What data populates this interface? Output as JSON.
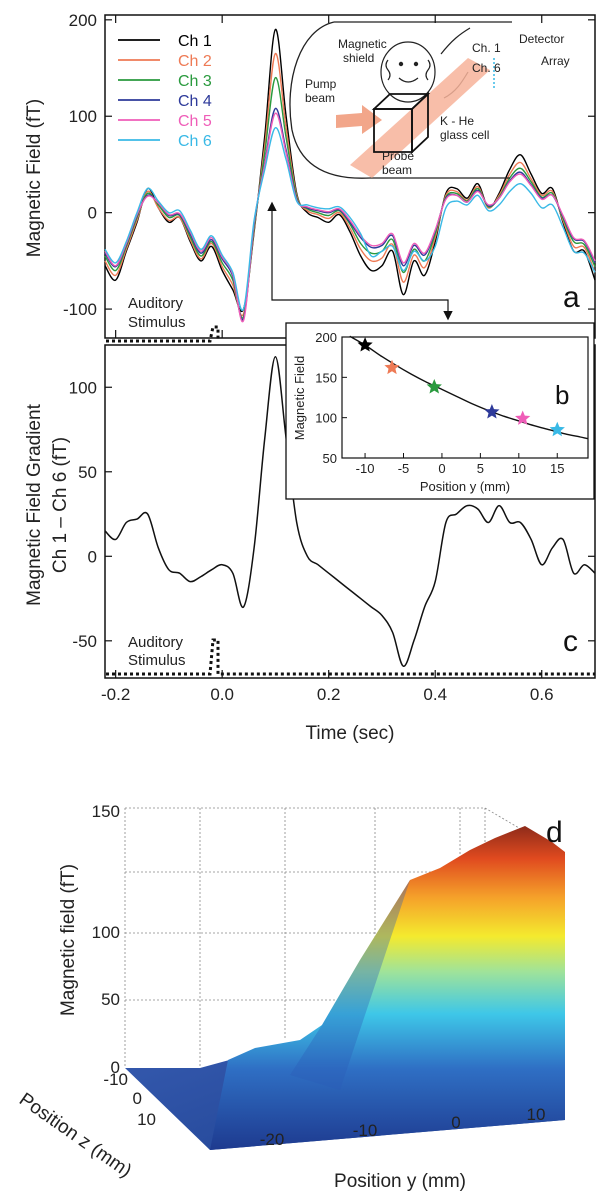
{
  "chart_data": [
    {
      "panel": "a",
      "type": "line",
      "ylabel": "Magnetic Field (fT)",
      "xlim": [
        -0.22,
        0.7
      ],
      "ylim": [
        -130,
        205
      ],
      "yticks": [
        "200",
        "100",
        "0",
        "-100"
      ],
      "x": [
        -0.22,
        -0.2,
        -0.18,
        -0.16,
        -0.14,
        -0.12,
        -0.1,
        -0.08,
        -0.06,
        -0.04,
        -0.02,
        0.0,
        0.02,
        0.04,
        0.06,
        0.08,
        0.1,
        0.12,
        0.14,
        0.16,
        0.18,
        0.2,
        0.22,
        0.24,
        0.26,
        0.28,
        0.3,
        0.32,
        0.34,
        0.36,
        0.38,
        0.4,
        0.42,
        0.44,
        0.46,
        0.48,
        0.5,
        0.52,
        0.54,
        0.56,
        0.58,
        0.6,
        0.62,
        0.64,
        0.66,
        0.68,
        0.7
      ],
      "series": [
        {
          "name": "Ch 1",
          "color": "#000000",
          "values": [
            -55,
            -70,
            -40,
            -10,
            25,
            5,
            -10,
            -5,
            -30,
            -50,
            -35,
            -60,
            -80,
            -100,
            -20,
            80,
            190,
            100,
            20,
            0,
            -5,
            -10,
            -2,
            -20,
            -45,
            -60,
            -55,
            -40,
            -85,
            -50,
            -65,
            -30,
            20,
            25,
            15,
            30,
            5,
            20,
            45,
            60,
            40,
            20,
            25,
            -10,
            -40,
            -40,
            -70
          ]
        },
        {
          "name": "Ch 2",
          "color": "#ee7a55",
          "values": [
            -50,
            -65,
            -38,
            -8,
            22,
            5,
            -8,
            -5,
            -28,
            -48,
            -32,
            -56,
            -75,
            -105,
            -18,
            70,
            165,
            88,
            18,
            2,
            -2,
            -6,
            0,
            -16,
            -38,
            -50,
            -47,
            -33,
            -72,
            -44,
            -57,
            -26,
            18,
            22,
            13,
            27,
            5,
            18,
            40,
            52,
            35,
            18,
            22,
            -8,
            -35,
            -36,
            -62
          ]
        },
        {
          "name": "Ch 3",
          "color": "#2a9a3e",
          "values": [
            -45,
            -60,
            -35,
            -5,
            20,
            8,
            -5,
            -3,
            -25,
            -45,
            -30,
            -52,
            -70,
            -108,
            -15,
            62,
            140,
            78,
            16,
            4,
            0,
            -3,
            2,
            -12,
            -32,
            -42,
            -40,
            -28,
            -62,
            -38,
            -50,
            -22,
            16,
            20,
            12,
            25,
            6,
            16,
            36,
            46,
            32,
            16,
            20,
            -6,
            -30,
            -33,
            -56
          ]
        },
        {
          "name": "Ch 4",
          "color": "#2e3a9a",
          "values": [
            -42,
            -56,
            -33,
            -3,
            18,
            10,
            -3,
            -2,
            -22,
            -42,
            -28,
            -48,
            -66,
            -110,
            -12,
            52,
            108,
            65,
            14,
            5,
            2,
            0,
            3,
            -10,
            -26,
            -36,
            -34,
            -24,
            -55,
            -34,
            -44,
            -19,
            15,
            18,
            11,
            23,
            7,
            15,
            33,
            42,
            29,
            15,
            18,
            -4,
            -27,
            -30,
            -52
          ]
        },
        {
          "name": "Ch 5",
          "color": "#ef5db8",
          "values": [
            -40,
            -55,
            -32,
            -2,
            17,
            10,
            -2,
            -1,
            -20,
            -40,
            -26,
            -46,
            -64,
            -112,
            -10,
            50,
            103,
            62,
            13,
            6,
            3,
            1,
            4,
            -8,
            -24,
            -34,
            -32,
            -22,
            -52,
            -32,
            -42,
            -18,
            14,
            18,
            11,
            22,
            8,
            15,
            32,
            40,
            28,
            14,
            18,
            -3,
            -26,
            -29,
            -50
          ]
        },
        {
          "name": "Ch 6",
          "color": "#39b9e6",
          "values": [
            -38,
            -52,
            -30,
            0,
            25,
            12,
            0,
            2,
            -18,
            -38,
            -24,
            -44,
            -62,
            -100,
            -8,
            45,
            88,
            55,
            12,
            8,
            5,
            4,
            6,
            -5,
            -22,
            -45,
            -40,
            -35,
            -60,
            -40,
            -50,
            -35,
            5,
            12,
            8,
            18,
            2,
            8,
            22,
            30,
            20,
            5,
            8,
            -15,
            -40,
            -42,
            -62
          ]
        }
      ],
      "annotation": [
        "Auditory",
        "Stimulus"
      ],
      "panel_label": "a",
      "inset_diagram": {
        "labels": [
          "Magnetic",
          "shield",
          "Pump",
          "beam",
          "Probe",
          "beam",
          "K - He",
          "glass cell",
          "Ch. 1",
          "Ch. 6",
          "Detector",
          "Array"
        ]
      }
    },
    {
      "panel": "b",
      "type": "scatter",
      "xlabel": "Position y (mm)",
      "ylabel": "Magnetic Field",
      "xlim": [
        -13,
        19
      ],
      "ylim": [
        50,
        200
      ],
      "xticks": [
        -10,
        -5,
        0,
        5,
        10,
        15
      ],
      "xtick_labels": [
        "-10",
        "-5",
        "0",
        "5",
        "10",
        "15"
      ],
      "yticks": [
        50,
        100,
        150,
        200
      ],
      "ytick_labels": [
        "50",
        "100",
        "150",
        "200"
      ],
      "points": [
        {
          "x": -10,
          "y": 190,
          "color": "#000000"
        },
        {
          "x": -6.5,
          "y": 162,
          "color": "#ee7a55"
        },
        {
          "x": -1,
          "y": 138,
          "color": "#2a9a3e"
        },
        {
          "x": 6.5,
          "y": 107,
          "color": "#2e3a9a"
        },
        {
          "x": 10.5,
          "y": 99,
          "color": "#ef5db8"
        },
        {
          "x": 15,
          "y": 85,
          "color": "#39b9e6"
        }
      ],
      "fit_curve": {
        "x": [
          -12,
          -10,
          -8,
          -6,
          -4,
          -2,
          0,
          2,
          4,
          6,
          8,
          10,
          12,
          14,
          16,
          18,
          19
        ],
        "y": [
          201,
          190,
          177,
          165,
          154,
          144,
          135,
          126,
          117,
          109,
          102,
          96,
          90,
          85,
          80,
          76,
          74
        ]
      },
      "panel_label": "b"
    },
    {
      "panel": "c",
      "type": "line",
      "xlabel": "Time (sec)",
      "ylabel": [
        "Magnetic Field Gradient",
        "Ch 1 – Ch 6 (fT)"
      ],
      "xlim": [
        -0.22,
        0.7
      ],
      "ylim": [
        -72,
        125
      ],
      "xticks": [
        "-0.2",
        "0.0",
        "0.2",
        "0.4",
        "0.6"
      ],
      "yticks": [
        "100",
        "50",
        "0",
        "-50"
      ],
      "x": [
        -0.22,
        -0.2,
        -0.18,
        -0.16,
        -0.14,
        -0.12,
        -0.1,
        -0.08,
        -0.06,
        -0.04,
        -0.02,
        0.0,
        0.02,
        0.04,
        0.06,
        0.08,
        0.1,
        0.12,
        0.14,
        0.16,
        0.18,
        0.2,
        0.22,
        0.24,
        0.26,
        0.28,
        0.3,
        0.32,
        0.34,
        0.36,
        0.38,
        0.4,
        0.42,
        0.44,
        0.46,
        0.48,
        0.5,
        0.52,
        0.54,
        0.56,
        0.58,
        0.6,
        0.62,
        0.64,
        0.66,
        0.68,
        0.7
      ],
      "values": [
        15,
        10,
        20,
        22,
        25,
        5,
        -8,
        -10,
        -15,
        -12,
        -8,
        -5,
        -10,
        -30,
        5,
        70,
        118,
        70,
        20,
        0,
        -5,
        -10,
        -15,
        -20,
        -25,
        -30,
        -35,
        -45,
        -65,
        -50,
        -30,
        -15,
        20,
        25,
        30,
        28,
        20,
        30,
        20,
        20,
        10,
        -5,
        5,
        10,
        -10,
        -5,
        -10
      ],
      "annotation": [
        "Auditory",
        "Stimulus"
      ],
      "panel_label": "c"
    },
    {
      "panel": "d",
      "type": "surface",
      "xlabel": "Position y (mm)",
      "ylabel": "Position z (mm)",
      "zlabel": "Magnetic field (fT)",
      "xticks": [
        "-20",
        "-10",
        "0",
        "10"
      ],
      "yticks": [
        "-10",
        "0",
        "10"
      ],
      "zticks": [
        "0",
        "50",
        "100",
        "150"
      ],
      "zlim": [
        0,
        150
      ],
      "ridge_profile": {
        "y": [
          -28,
          -20,
          -15,
          -10,
          -5,
          0,
          5,
          10,
          12
        ],
        "z": [
          0,
          5,
          30,
          70,
          110,
          115,
          135,
          130,
          125
        ]
      },
      "panel_label": "d"
    }
  ]
}
